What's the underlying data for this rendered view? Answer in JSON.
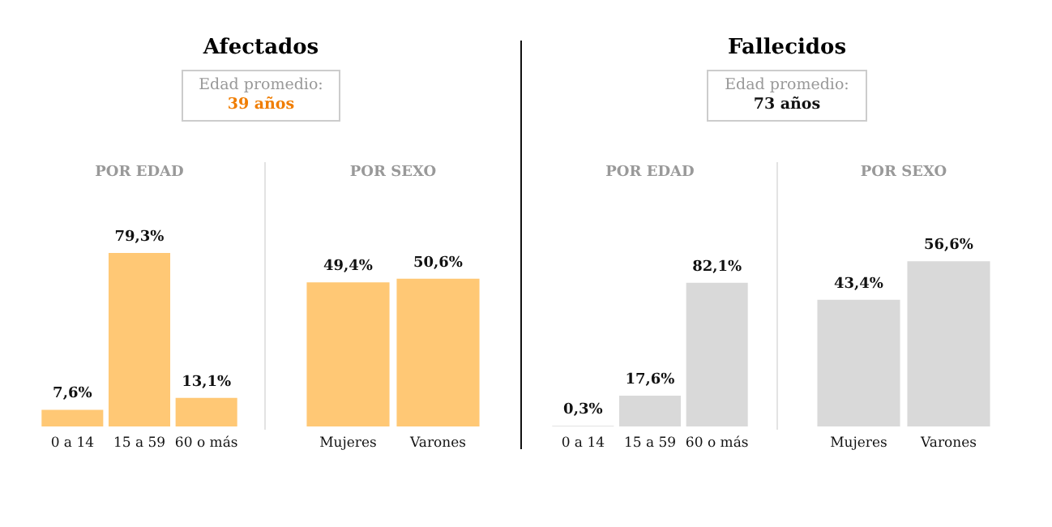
{
  "chart_data": [
    {
      "type": "other",
      "title": "Afectados",
      "annotations": [
        "Edad promedio:",
        "39 años"
      ],
      "color": "#f07d00"
    },
    {
      "type": "bar",
      "title": "POR EDAD",
      "categories": [
        "0 a 14",
        "15 a 59",
        "60 o más"
      ],
      "values": [
        7.6,
        79.3,
        13.1
      ],
      "value_labels": [
        "7,6%",
        "79,3%",
        "13,1%"
      ],
      "color": "#ffc875"
    },
    {
      "type": "bar",
      "title": "POR SEXO",
      "categories": [
        "Mujeres",
        "Varones"
      ],
      "values": [
        49.4,
        50.6
      ],
      "value_labels": [
        "49,4%",
        "50,6%"
      ],
      "color": "#ffc875"
    },
    {
      "type": "other",
      "title": "Fallecidos",
      "annotations": [
        "Edad promedio:",
        "73 años"
      ],
      "color": "#111111"
    },
    {
      "type": "bar",
      "title": "POR EDAD",
      "categories": [
        "0 a 14",
        "15 a 59",
        "60 o más"
      ],
      "values": [
        0.3,
        17.6,
        82.1
      ],
      "value_labels": [
        "0,3%",
        "17,6%",
        "82,1%"
      ],
      "color": "#d9d9d9"
    },
    {
      "type": "bar",
      "title": "POR SEXO",
      "categories": [
        "Mujeres",
        "Varones"
      ],
      "values": [
        43.4,
        56.6
      ],
      "value_labels": [
        "43,4%",
        "56,6%"
      ],
      "color": "#d9d9d9"
    }
  ]
}
